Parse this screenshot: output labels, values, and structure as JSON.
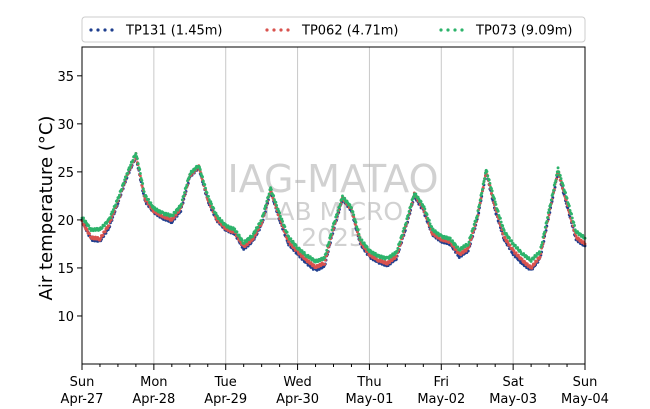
{
  "chart_data": {
    "type": "line",
    "ylabel": "Air temperature (°C)",
    "ylim": [
      5,
      38
    ],
    "y_ticks": [
      "10",
      "15",
      "20",
      "25",
      "30",
      "35"
    ],
    "x_ticks": [
      {
        "day": "Sun",
        "date": "Apr-27"
      },
      {
        "day": "Mon",
        "date": "Apr-28"
      },
      {
        "day": "Tue",
        "date": "Apr-29"
      },
      {
        "day": "Wed",
        "date": "Apr-30"
      },
      {
        "day": "Thu",
        "date": "May-01"
      },
      {
        "day": "Fri",
        "date": "May-02"
      },
      {
        "day": "Sat",
        "date": "May-03"
      },
      {
        "day": "Sun",
        "date": "May-04"
      }
    ],
    "x_range": [
      "2025-04-27 00:00",
      "2025-05-04 00:00"
    ],
    "grid": "vertical at day boundaries",
    "legend_position": "top",
    "watermark": [
      "IAG-MATAO",
      "LAB MICRO",
      "2025"
    ],
    "series": [
      {
        "name": "TP131 (1.45m)",
        "color": "#1f3f8f",
        "points": [
          [
            "Apr-27 00:00",
            20.0
          ],
          [
            "Apr-27 03:00",
            18.0
          ],
          [
            "Apr-27 06:00",
            17.8
          ],
          [
            "Apr-27 09:00",
            19.2
          ],
          [
            "Apr-27 12:00",
            21.8
          ],
          [
            "Apr-27 15:00",
            24.5
          ],
          [
            "Apr-27 18:00",
            26.6
          ],
          [
            "Apr-27 21:00",
            22.0
          ],
          [
            "Apr-28 00:00",
            20.8
          ],
          [
            "Apr-28 03:00",
            20.2
          ],
          [
            "Apr-28 06:00",
            19.8
          ],
          [
            "Apr-28 09:00",
            21.0
          ],
          [
            "Apr-28 12:00",
            24.5
          ],
          [
            "Apr-28 15:00",
            25.5
          ],
          [
            "Apr-28 18:00",
            22.0
          ],
          [
            "Apr-28 21:00",
            20.0
          ],
          [
            "Apr-29 00:00",
            19.0
          ],
          [
            "Apr-29 03:00",
            18.6
          ],
          [
            "Apr-29 06:00",
            17.0
          ],
          [
            "Apr-29 09:00",
            17.8
          ],
          [
            "Apr-29 12:00",
            19.5
          ],
          [
            "Apr-29 15:00",
            23.0
          ],
          [
            "Apr-29 18:00",
            20.0
          ],
          [
            "Apr-29 21:00",
            17.5
          ],
          [
            "Apr-30 00:00",
            16.5
          ],
          [
            "Apr-30 03:00",
            15.5
          ],
          [
            "Apr-30 06:00",
            14.8
          ],
          [
            "Apr-30 09:00",
            15.2
          ],
          [
            "Apr-30 12:00",
            19.0
          ],
          [
            "Apr-30 15:00",
            22.2
          ],
          [
            "Apr-30 18:00",
            21.0
          ],
          [
            "Apr-30 21:00",
            17.5
          ],
          [
            "May-01 00:00",
            16.2
          ],
          [
            "May-01 03:00",
            15.6
          ],
          [
            "May-01 06:00",
            15.3
          ],
          [
            "May-01 09:00",
            16.0
          ],
          [
            "May-01 12:00",
            19.0
          ],
          [
            "May-01 15:00",
            22.5
          ],
          [
            "May-01 18:00",
            21.0
          ],
          [
            "May-01 21:00",
            18.5
          ],
          [
            "May-02 00:00",
            17.8
          ],
          [
            "May-02 03:00",
            17.5
          ],
          [
            "May-02 06:00",
            16.2
          ],
          [
            "May-02 09:00",
            16.8
          ],
          [
            "May-02 12:00",
            20.0
          ],
          [
            "May-02 15:00",
            25.0
          ],
          [
            "May-02 18:00",
            21.0
          ],
          [
            "May-02 21:00",
            18.0
          ],
          [
            "May-03 00:00",
            16.5
          ],
          [
            "May-03 03:00",
            15.5
          ],
          [
            "May-03 06:00",
            14.8
          ],
          [
            "May-03 09:00",
            16.0
          ],
          [
            "May-03 12:00",
            20.5
          ],
          [
            "May-03 15:00",
            25.0
          ],
          [
            "May-03 18:00",
            21.5
          ],
          [
            "May-03 21:00",
            18.0
          ],
          [
            "May-04 00:00",
            17.3
          ]
        ]
      },
      {
        "name": "TP062 (4.71m)",
        "color": "#d9534f",
        "points": [
          [
            "Apr-27 00:00",
            19.8
          ],
          [
            "Apr-27 03:00",
            18.2
          ],
          [
            "Apr-27 06:00",
            18.0
          ],
          [
            "Apr-27 09:00",
            19.5
          ],
          [
            "Apr-27 12:00",
            22.0
          ],
          [
            "Apr-27 15:00",
            24.6
          ],
          [
            "Apr-27 18:00",
            26.8
          ],
          [
            "Apr-27 21:00",
            22.2
          ],
          [
            "Apr-28 00:00",
            20.9
          ],
          [
            "Apr-28 03:00",
            20.4
          ],
          [
            "Apr-28 06:00",
            20.0
          ],
          [
            "Apr-28 09:00",
            21.2
          ],
          [
            "Apr-28 12:00",
            24.6
          ],
          [
            "Apr-28 15:00",
            25.6
          ],
          [
            "Apr-28 18:00",
            22.2
          ],
          [
            "Apr-28 21:00",
            20.1
          ],
          [
            "Apr-29 00:00",
            19.1
          ],
          [
            "Apr-29 03:00",
            18.7
          ],
          [
            "Apr-29 06:00",
            17.2
          ],
          [
            "Apr-29 09:00",
            18.0
          ],
          [
            "Apr-29 12:00",
            19.7
          ],
          [
            "Apr-29 15:00",
            23.1
          ],
          [
            "Apr-29 18:00",
            20.2
          ],
          [
            "Apr-29 21:00",
            17.7
          ],
          [
            "Apr-30 00:00",
            16.7
          ],
          [
            "Apr-30 03:00",
            15.8
          ],
          [
            "Apr-30 06:00",
            15.1
          ],
          [
            "Apr-30 09:00",
            15.5
          ],
          [
            "Apr-30 12:00",
            19.2
          ],
          [
            "Apr-30 15:00",
            22.3
          ],
          [
            "Apr-30 18:00",
            21.1
          ],
          [
            "Apr-30 21:00",
            17.7
          ],
          [
            "May-01 00:00",
            16.4
          ],
          [
            "May-01 03:00",
            15.8
          ],
          [
            "May-01 06:00",
            15.5
          ],
          [
            "May-01 09:00",
            16.2
          ],
          [
            "May-01 12:00",
            19.2
          ],
          [
            "May-01 15:00",
            22.7
          ],
          [
            "May-01 18:00",
            21.2
          ],
          [
            "May-01 21:00",
            18.6
          ],
          [
            "May-02 00:00",
            18.0
          ],
          [
            "May-02 03:00",
            17.7
          ],
          [
            "May-02 06:00",
            16.4
          ],
          [
            "May-02 09:00",
            17.0
          ],
          [
            "May-02 12:00",
            20.2
          ],
          [
            "May-02 15:00",
            25.1
          ],
          [
            "May-02 18:00",
            21.3
          ],
          [
            "May-02 21:00",
            18.2
          ],
          [
            "May-03 00:00",
            16.8
          ],
          [
            "May-03 03:00",
            15.8
          ],
          [
            "May-03 06:00",
            15.0
          ],
          [
            "May-03 09:00",
            16.2
          ],
          [
            "May-03 12:00",
            20.7
          ],
          [
            "May-03 15:00",
            25.1
          ],
          [
            "May-03 18:00",
            21.7
          ],
          [
            "May-03 21:00",
            18.2
          ],
          [
            "May-04 00:00",
            17.5
          ]
        ]
      },
      {
        "name": "TP073 (9.09m)",
        "color": "#2db36b",
        "points": [
          [
            "Apr-27 00:00",
            20.3
          ],
          [
            "Apr-27 03:00",
            19.0
          ],
          [
            "Apr-27 06:00",
            19.0
          ],
          [
            "Apr-27 09:00",
            20.0
          ],
          [
            "Apr-27 12:00",
            22.2
          ],
          [
            "Apr-27 15:00",
            24.8
          ],
          [
            "Apr-27 18:00",
            27.0
          ],
          [
            "Apr-27 21:00",
            22.6
          ],
          [
            "Apr-28 00:00",
            21.2
          ],
          [
            "Apr-28 03:00",
            20.7
          ],
          [
            "Apr-28 06:00",
            20.4
          ],
          [
            "Apr-28 09:00",
            21.5
          ],
          [
            "Apr-28 12:00",
            24.8
          ],
          [
            "Apr-28 15:00",
            25.7
          ],
          [
            "Apr-28 18:00",
            22.5
          ],
          [
            "Apr-28 21:00",
            20.4
          ],
          [
            "Apr-29 00:00",
            19.4
          ],
          [
            "Apr-29 03:00",
            19.0
          ],
          [
            "Apr-29 06:00",
            17.6
          ],
          [
            "Apr-29 09:00",
            18.4
          ],
          [
            "Apr-29 12:00",
            20.0
          ],
          [
            "Apr-29 15:00",
            23.3
          ],
          [
            "Apr-29 18:00",
            20.6
          ],
          [
            "Apr-29 21:00",
            18.2
          ],
          [
            "Apr-30 00:00",
            17.1
          ],
          [
            "Apr-30 03:00",
            16.3
          ],
          [
            "Apr-30 06:00",
            15.7
          ],
          [
            "Apr-30 09:00",
            16.0
          ],
          [
            "Apr-30 12:00",
            19.5
          ],
          [
            "Apr-30 15:00",
            22.4
          ],
          [
            "Apr-30 18:00",
            21.3
          ],
          [
            "Apr-30 21:00",
            18.0
          ],
          [
            "May-01 00:00",
            16.8
          ],
          [
            "May-01 03:00",
            16.2
          ],
          [
            "May-01 06:00",
            16.0
          ],
          [
            "May-01 09:00",
            16.6
          ],
          [
            "May-01 12:00",
            19.5
          ],
          [
            "May-01 15:00",
            22.8
          ],
          [
            "May-01 18:00",
            21.5
          ],
          [
            "May-01 21:00",
            19.0
          ],
          [
            "May-02 00:00",
            18.3
          ],
          [
            "May-02 03:00",
            18.0
          ],
          [
            "May-02 06:00",
            16.9
          ],
          [
            "May-02 09:00",
            17.5
          ],
          [
            "May-02 12:00",
            20.5
          ],
          [
            "May-02 15:00",
            25.2
          ],
          [
            "May-02 18:00",
            21.8
          ],
          [
            "May-02 21:00",
            18.8
          ],
          [
            "May-03 00:00",
            17.5
          ],
          [
            "May-03 03:00",
            16.5
          ],
          [
            "May-03 06:00",
            15.8
          ],
          [
            "May-03 09:00",
            16.7
          ],
          [
            "May-03 12:00",
            21.0
          ],
          [
            "May-03 15:00",
            25.3
          ],
          [
            "May-03 18:00",
            22.2
          ],
          [
            "May-03 21:00",
            18.8
          ],
          [
            "May-04 00:00",
            18.1
          ]
        ]
      }
    ]
  }
}
